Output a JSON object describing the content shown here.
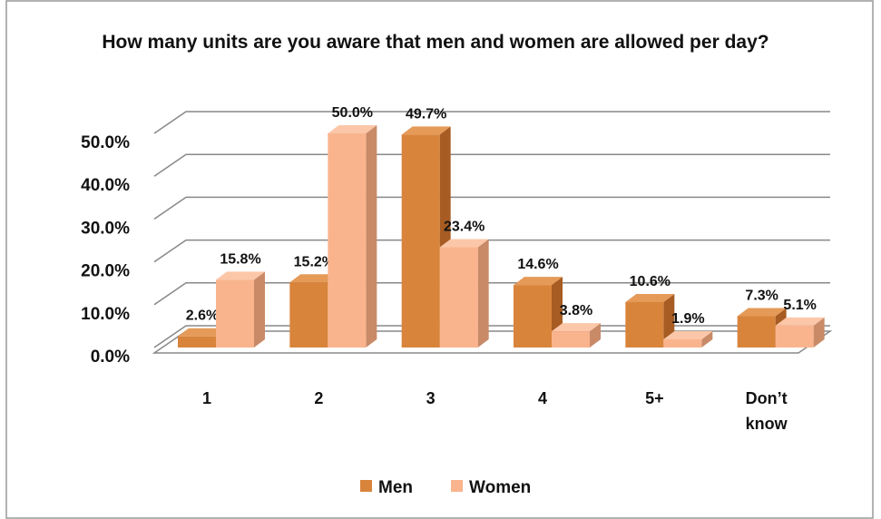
{
  "chart_data": {
    "type": "bar3d",
    "title": "How many units are you aware that men and women are allowed per day?",
    "categories": [
      "1",
      "2",
      "3",
      "4",
      "5+",
      "Don’t know"
    ],
    "series": [
      {
        "name": "Men",
        "color": "#d9843b",
        "side_color": "#a65c22",
        "top_color": "#e59a58",
        "values": [
          2.6,
          15.2,
          49.7,
          14.6,
          10.6,
          7.3
        ],
        "value_labels": [
          "2.6%",
          "15.2%",
          "49.7%",
          "14.6%",
          "10.6%",
          "7.3%"
        ]
      },
      {
        "name": "Women",
        "color": "#f9b48e",
        "side_color": "#c98a68",
        "top_color": "#fcc7a8",
        "values": [
          15.8,
          50.0,
          23.4,
          3.8,
          1.9,
          5.1
        ],
        "value_labels": [
          "15.8%",
          "50.0%",
          "23.4%",
          "3.8%",
          "1.9%",
          "5.1%"
        ]
      }
    ],
    "ylim": [
      0,
      50
    ],
    "yticks": [
      {
        "value": 0,
        "label": "0.0%"
      },
      {
        "value": 10,
        "label": "10.0%"
      },
      {
        "value": 20,
        "label": "20.0%"
      },
      {
        "value": 30,
        "label": "30.0%"
      },
      {
        "value": 40,
        "label": "40.0%"
      },
      {
        "value": 50,
        "label": "50.0%"
      }
    ],
    "grid": true
  }
}
